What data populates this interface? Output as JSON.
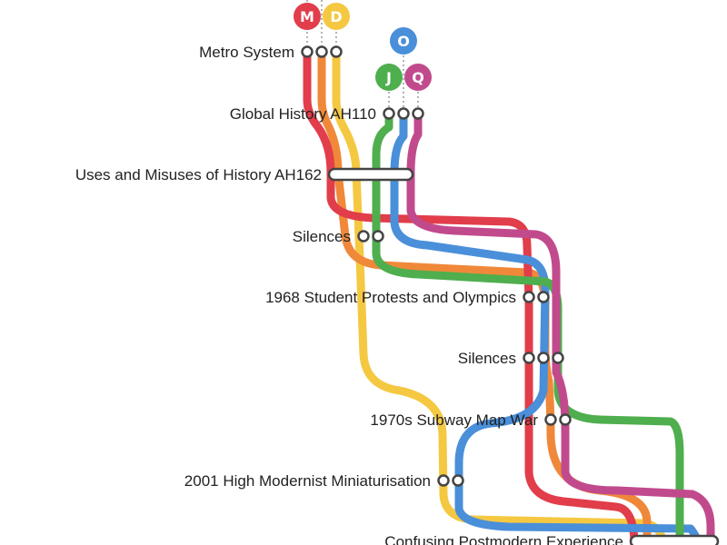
{
  "lines": [
    {
      "id": "M",
      "label": "M",
      "color": "#e13d4a"
    },
    {
      "id": "D",
      "label": "D",
      "color": "#f5c842"
    },
    {
      "id": "orange",
      "label": "",
      "color": "#f0883a"
    },
    {
      "id": "O",
      "label": "O",
      "color": "#4a8fd9"
    },
    {
      "id": "J",
      "label": "J",
      "color": "#4fae4e"
    },
    {
      "id": "Q",
      "label": "Q",
      "color": "#c14a8d"
    }
  ],
  "stations": [
    {
      "id": "s1",
      "name": "Metro System"
    },
    {
      "id": "s2",
      "name": "Global History AH110"
    },
    {
      "id": "s3",
      "name": "Uses and Misuses of History AH162"
    },
    {
      "id": "s4",
      "name": "Silences"
    },
    {
      "id": "s5",
      "name": "1968 Student Protests and Olympics"
    },
    {
      "id": "s6",
      "name": "Silences"
    },
    {
      "id": "s7",
      "name": "1970s Subway Map War"
    },
    {
      "id": "s8",
      "name": "2001 High Modernist Miniaturisation"
    },
    {
      "id": "s9",
      "name": "Confusing Postmodern Experience"
    }
  ]
}
